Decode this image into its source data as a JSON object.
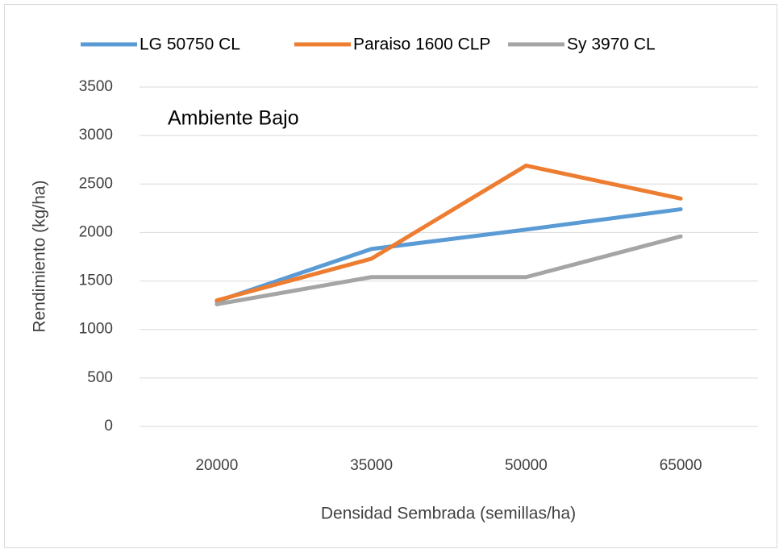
{
  "chart_data": {
    "type": "line",
    "annotation": "Ambiente Bajo",
    "x_label": "Densidad Sembrada (semillas/ha)",
    "y_label": "Rendimiento (kg/ha)",
    "categories": [
      "20000",
      "35000",
      "50000",
      "65000"
    ],
    "series": [
      {
        "name": "LG 50750 CL",
        "color": "#5b9bd5",
        "values": [
          1290,
          1830,
          2030,
          2240
        ]
      },
      {
        "name": "Paraiso 1600 CLP",
        "color": "#ed7d31",
        "values": [
          1300,
          1730,
          2690,
          2350
        ]
      },
      {
        "name": "Sy 3970 CL",
        "color": "#a5a5a5",
        "values": [
          1260,
          1540,
          1540,
          1960
        ]
      }
    ],
    "ylim": [
      0,
      3500
    ],
    "yticks": [
      0,
      500,
      1000,
      1500,
      2000,
      2500,
      3000,
      3500
    ],
    "grid": true,
    "legend": "top"
  }
}
